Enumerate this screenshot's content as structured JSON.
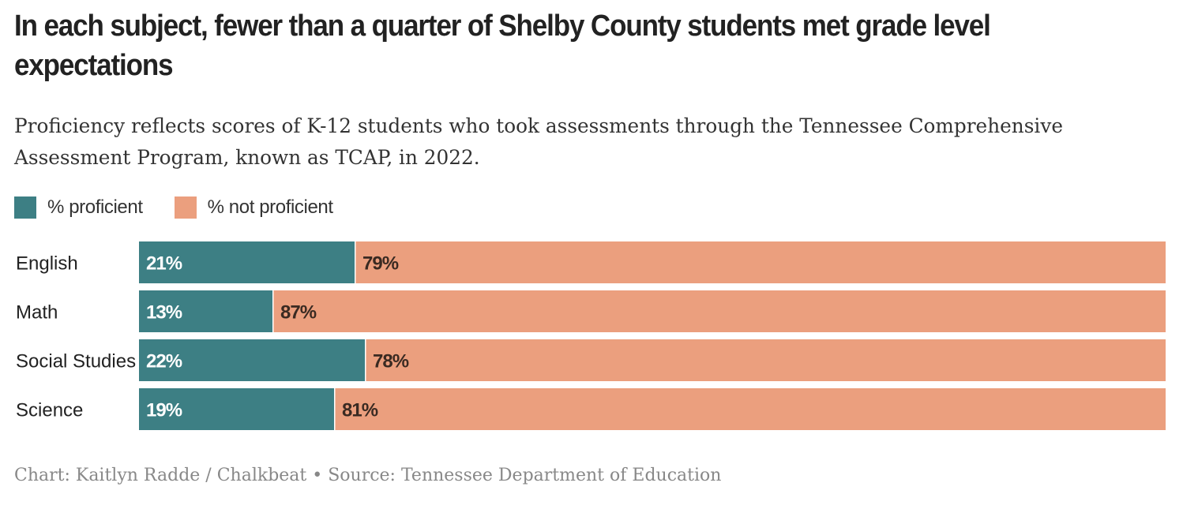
{
  "title": "In each subject, fewer than a quarter of Shelby County students met grade level expectations",
  "subtitle": "Proficiency reflects scores of K-12 students who took assessments through the Tennessee Comprehensive Assessment Program, known as TCAP, in 2022.",
  "legend": [
    {
      "label": "% proficient",
      "color": "#3d7f84"
    },
    {
      "label": "% not proficient",
      "color": "#eb9f7e"
    }
  ],
  "footer": "Chart: Kaitlyn Radde / Chalkbeat • Source: Tennessee Department of Education",
  "chart_data": {
    "type": "bar",
    "orientation": "horizontal",
    "stacked": true,
    "categories": [
      "English",
      "Math",
      "Social Studies",
      "Science"
    ],
    "series": [
      {
        "name": "% proficient",
        "values": [
          21,
          13,
          22,
          19
        ],
        "labels": [
          "21%",
          "13%",
          "22%",
          "19%"
        ],
        "color": "#3d7f84"
      },
      {
        "name": "% not proficient",
        "values": [
          79,
          87,
          78,
          81
        ],
        "labels": [
          "79%",
          "87%",
          "78%",
          "81%"
        ],
        "color": "#eb9f7e"
      }
    ],
    "xlim": [
      0,
      100
    ],
    "grid": false,
    "legend_position": "top-left"
  }
}
